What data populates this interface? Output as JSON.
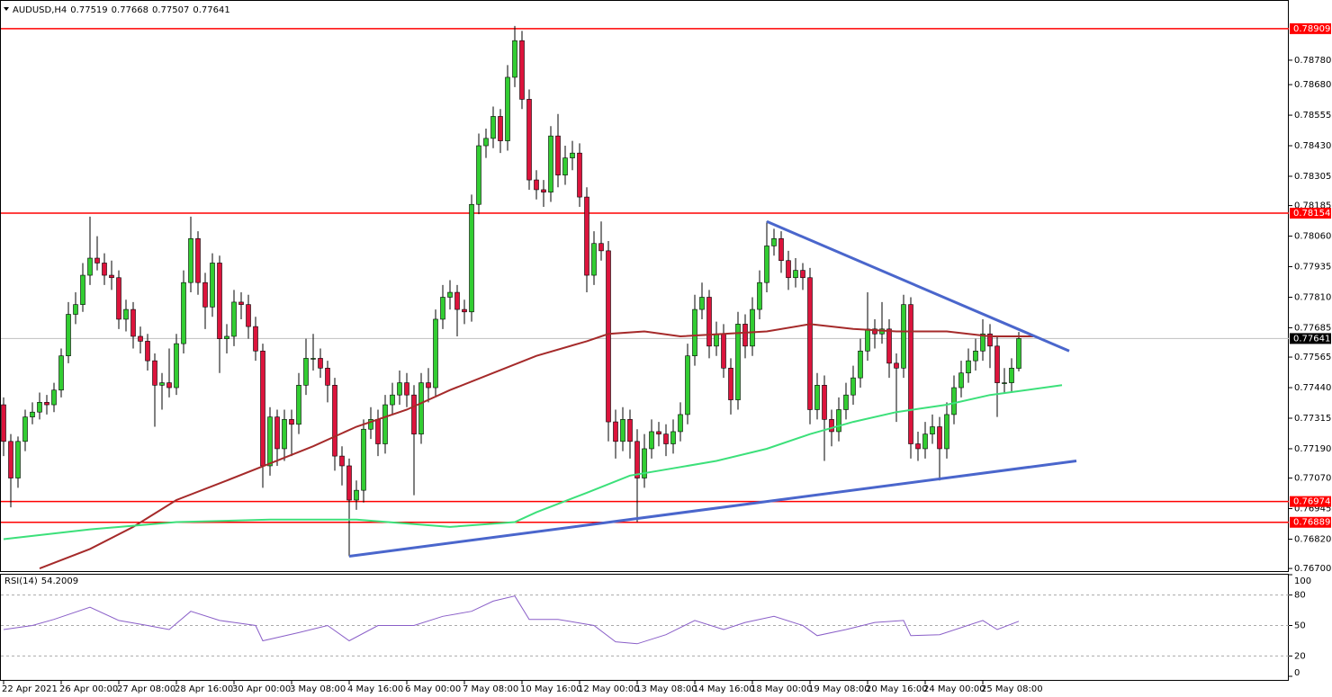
{
  "chart_data": {
    "type": "candlestick",
    "title": "AUDUSD,H4",
    "up_color": "#32cd32",
    "down_color": "#dc143c",
    "level_color": "#ff0000",
    "price_line_color": "#c0c0c0",
    "ylim": [
      0.76693,
      0.78938
    ],
    "yticks": [
      {
        "value": 0.7878,
        "label": "0.78780"
      },
      {
        "value": 0.7868,
        "label": "0.78680"
      },
      0.78555,
      {
        "value": 0.7843,
        "label": "0.78430"
      },
      0.78305,
      0.78185,
      {
        "value": 0.7806,
        "label": "0.78060"
      },
      0.77935,
      {
        "value": 0.7781,
        "label": "0.77810"
      },
      0.77685,
      0.77565,
      {
        "value": 0.7744,
        "label": "0.77440"
      },
      0.77315,
      {
        "value": 0.7719,
        "label": "0.77190"
      },
      {
        "value": 0.7707,
        "label": "0.77070"
      },
      0.76945,
      {
        "value": 0.7682,
        "label": "0.76820"
      },
      {
        "value": 0.767,
        "label": "0.76700"
      }
    ],
    "xticks": [
      {
        "value": 0,
        "label": "22 Apr 2021"
      },
      {
        "value": 8,
        "label": "26 Apr 00:00"
      },
      {
        "value": 16,
        "label": "27 Apr 08:00"
      },
      {
        "value": 24,
        "label": "28 Apr 16:00"
      },
      {
        "value": 32,
        "label": "30 Apr 00:00"
      },
      {
        "value": 40,
        "label": "3 May 08:00"
      },
      {
        "value": 48,
        "label": "4 May 16:00"
      },
      {
        "value": 56,
        "label": "6 May 00:00"
      },
      {
        "value": 64,
        "label": "7 May 08:00"
      },
      {
        "value": 72,
        "label": "10 May 16:00"
      },
      {
        "value": 80,
        "label": "12 May 00:00"
      },
      {
        "value": 88,
        "label": "13 May 08:00"
      },
      {
        "value": 96,
        "label": "14 May 16:00"
      },
      {
        "value": 104,
        "label": "18 May 00:00"
      },
      {
        "value": 112,
        "label": "19 May 08:00"
      },
      {
        "value": 120,
        "label": "20 May 16:00"
      },
      {
        "value": 128,
        "label": "24 May 00:00"
      },
      {
        "value": 136,
        "label": "25 May 08:00"
      }
    ],
    "levels": [
      0.78909,
      0.78154,
      0.76974,
      0.76889
    ],
    "ohlc": [
      [
        0.7737,
        0.774,
        0.7716,
        0.7722
      ],
      [
        0.7722,
        0.7725,
        0.7695,
        0.7707
      ],
      [
        0.7707,
        0.7724,
        0.7703,
        0.7722
      ],
      [
        0.7722,
        0.7735,
        0.7718,
        0.7732
      ],
      [
        0.7732,
        0.7738,
        0.7729,
        0.7734
      ],
      [
        0.7734,
        0.7742,
        0.7731,
        0.7738
      ],
      [
        0.7738,
        0.7741,
        0.7733,
        0.7737
      ],
      [
        0.7737,
        0.7746,
        0.7734,
        0.7743
      ],
      [
        0.7743,
        0.776,
        0.774,
        0.7757
      ],
      [
        0.7757,
        0.7779,
        0.7754,
        0.7774
      ],
      [
        0.7774,
        0.7783,
        0.777,
        0.7778
      ],
      [
        0.7778,
        0.7795,
        0.7775,
        0.779
      ],
      [
        0.779,
        0.7814,
        0.7786,
        0.7797
      ],
      [
        0.7797,
        0.7806,
        0.7792,
        0.7795
      ],
      [
        0.7795,
        0.7799,
        0.7786,
        0.779
      ],
      [
        0.779,
        0.7796,
        0.7784,
        0.7789
      ],
      [
        0.7789,
        0.7792,
        0.7768,
        0.7772
      ],
      [
        0.7772,
        0.778,
        0.7767,
        0.7776
      ],
      [
        0.7776,
        0.7779,
        0.776,
        0.7765
      ],
      [
        0.7765,
        0.7769,
        0.7758,
        0.7763
      ],
      [
        0.7763,
        0.7766,
        0.7751,
        0.7755
      ],
      [
        0.7755,
        0.7758,
        0.7728,
        0.7745
      ],
      [
        0.7745,
        0.775,
        0.7735,
        0.7746
      ],
      [
        0.7746,
        0.776,
        0.774,
        0.7744
      ],
      [
        0.7744,
        0.7766,
        0.7741,
        0.7762
      ],
      [
        0.7762,
        0.7792,
        0.7758,
        0.7787
      ],
      [
        0.7787,
        0.7814,
        0.7783,
        0.7805
      ],
      [
        0.7805,
        0.7808,
        0.7782,
        0.7787
      ],
      [
        0.7787,
        0.7791,
        0.7768,
        0.7777
      ],
      [
        0.7777,
        0.7799,
        0.7773,
        0.7795
      ],
      [
        0.7795,
        0.7798,
        0.775,
        0.7764
      ],
      [
        0.7764,
        0.777,
        0.7758,
        0.7765
      ],
      [
        0.7765,
        0.7784,
        0.7761,
        0.7779
      ],
      [
        0.7779,
        0.7783,
        0.7772,
        0.7778
      ],
      [
        0.7778,
        0.7782,
        0.7764,
        0.7769
      ],
      [
        0.7769,
        0.7773,
        0.7755,
        0.7759
      ],
      [
        0.7759,
        0.7762,
        0.7703,
        0.7712
      ],
      [
        0.7712,
        0.7736,
        0.7708,
        0.7732
      ],
      [
        0.7732,
        0.7735,
        0.7712,
        0.7719
      ],
      [
        0.7719,
        0.7735,
        0.7714,
        0.7731
      ],
      [
        0.7731,
        0.7735,
        0.7716,
        0.7729
      ],
      [
        0.7729,
        0.775,
        0.7725,
        0.7745
      ],
      [
        0.7745,
        0.7764,
        0.7741,
        0.7756
      ],
      [
        0.7756,
        0.7766,
        0.7751,
        0.7756
      ],
      [
        0.7756,
        0.776,
        0.7748,
        0.7752
      ],
      [
        0.7752,
        0.7755,
        0.7738,
        0.7745
      ],
      [
        0.7745,
        0.7748,
        0.771,
        0.7716
      ],
      [
        0.7716,
        0.772,
        0.7704,
        0.7712
      ],
      [
        0.7712,
        0.7715,
        0.7675,
        0.7698
      ],
      [
        0.7698,
        0.7706,
        0.7694,
        0.7702
      ],
      [
        0.7702,
        0.7731,
        0.7697,
        0.7727
      ],
      [
        0.7727,
        0.7736,
        0.7723,
        0.7731
      ],
      [
        0.7731,
        0.7735,
        0.7716,
        0.7721
      ],
      [
        0.7721,
        0.7741,
        0.7717,
        0.7737
      ],
      [
        0.7737,
        0.7746,
        0.7733,
        0.7741
      ],
      [
        0.7741,
        0.7751,
        0.7737,
        0.7746
      ],
      [
        0.7746,
        0.775,
        0.7736,
        0.7741
      ],
      [
        0.7741,
        0.7745,
        0.77,
        0.7725
      ],
      [
        0.7725,
        0.775,
        0.7721,
        0.7746
      ],
      [
        0.7746,
        0.7752,
        0.7738,
        0.7744
      ],
      [
        0.7744,
        0.7776,
        0.774,
        0.7772
      ],
      [
        0.7772,
        0.7786,
        0.7768,
        0.7781
      ],
      [
        0.7781,
        0.7788,
        0.7776,
        0.7783
      ],
      [
        0.7783,
        0.7786,
        0.7765,
        0.7776
      ],
      [
        0.7776,
        0.778,
        0.777,
        0.7775
      ],
      [
        0.7775,
        0.7823,
        0.7771,
        0.7819
      ],
      [
        0.7819,
        0.7848,
        0.7815,
        0.7843
      ],
      [
        0.7843,
        0.785,
        0.7838,
        0.7846
      ],
      [
        0.7846,
        0.7859,
        0.7842,
        0.7855
      ],
      [
        0.7855,
        0.7858,
        0.784,
        0.7845
      ],
      [
        0.7845,
        0.7876,
        0.7841,
        0.7871
      ],
      [
        0.7871,
        0.7892,
        0.7867,
        0.7886
      ],
      [
        0.7886,
        0.789,
        0.7858,
        0.7862
      ],
      [
        0.7862,
        0.7866,
        0.7825,
        0.7829
      ],
      [
        0.7829,
        0.7833,
        0.7821,
        0.7825
      ],
      [
        0.7825,
        0.7829,
        0.7818,
        0.7824
      ],
      [
        0.7824,
        0.7851,
        0.782,
        0.7847
      ],
      [
        0.7847,
        0.7856,
        0.7826,
        0.7831
      ],
      [
        0.7831,
        0.7843,
        0.7827,
        0.7838
      ],
      [
        0.7838,
        0.7845,
        0.7833,
        0.784
      ],
      [
        0.784,
        0.7844,
        0.7818,
        0.7822
      ],
      [
        0.7822,
        0.7826,
        0.7783,
        0.779
      ],
      [
        0.779,
        0.7808,
        0.7786,
        0.7803
      ],
      [
        0.7803,
        0.7812,
        0.7796,
        0.78
      ],
      [
        0.78,
        0.7804,
        0.7722,
        0.773
      ],
      [
        0.773,
        0.7735,
        0.7715,
        0.7722
      ],
      [
        0.7722,
        0.7736,
        0.7718,
        0.7731
      ],
      [
        0.7731,
        0.7735,
        0.7715,
        0.7722
      ],
      [
        0.7722,
        0.7727,
        0.7689,
        0.7707
      ],
      [
        0.7707,
        0.7725,
        0.7703,
        0.7719
      ],
      [
        0.7719,
        0.7731,
        0.7715,
        0.7726
      ],
      [
        0.7726,
        0.773,
        0.772,
        0.7725
      ],
      [
        0.7725,
        0.7729,
        0.7716,
        0.7721
      ],
      [
        0.7721,
        0.7731,
        0.7717,
        0.7726
      ],
      [
        0.7726,
        0.7738,
        0.7722,
        0.7733
      ],
      [
        0.7733,
        0.7762,
        0.7729,
        0.7757
      ],
      [
        0.7757,
        0.7782,
        0.7753,
        0.7776
      ],
      [
        0.7776,
        0.7787,
        0.7772,
        0.7781
      ],
      [
        0.7781,
        0.7784,
        0.7756,
        0.7761
      ],
      [
        0.7761,
        0.7771,
        0.7757,
        0.7766
      ],
      [
        0.7766,
        0.777,
        0.7748,
        0.7752
      ],
      [
        0.7752,
        0.7756,
        0.7733,
        0.7739
      ],
      [
        0.7739,
        0.7775,
        0.7735,
        0.777
      ],
      [
        0.777,
        0.7774,
        0.7756,
        0.7761
      ],
      [
        0.7761,
        0.7781,
        0.7757,
        0.7776
      ],
      [
        0.7776,
        0.7792,
        0.7772,
        0.7787
      ],
      [
        0.7787,
        0.7812,
        0.7783,
        0.7802
      ],
      [
        0.7802,
        0.7809,
        0.7798,
        0.7805
      ],
      [
        0.7805,
        0.7808,
        0.7791,
        0.7796
      ],
      [
        0.7796,
        0.78,
        0.7784,
        0.7789
      ],
      [
        0.7789,
        0.7797,
        0.7785,
        0.7792
      ],
      [
        0.7792,
        0.7795,
        0.7784,
        0.7789
      ],
      [
        0.7789,
        0.7793,
        0.7729,
        0.7735
      ],
      [
        0.7735,
        0.775,
        0.7731,
        0.7745
      ],
      [
        0.7745,
        0.7749,
        0.7714,
        0.7731
      ],
      [
        0.7731,
        0.7735,
        0.772,
        0.7726
      ],
      [
        0.7726,
        0.774,
        0.7722,
        0.7735
      ],
      [
        0.7735,
        0.7746,
        0.7731,
        0.7741
      ],
      [
        0.7741,
        0.7753,
        0.7737,
        0.7748
      ],
      [
        0.7748,
        0.7764,
        0.7744,
        0.7759
      ],
      [
        0.7759,
        0.7783,
        0.7755,
        0.7768
      ],
      [
        0.7768,
        0.7772,
        0.776,
        0.7766
      ],
      [
        0.7766,
        0.7779,
        0.7762,
        0.7768
      ],
      [
        0.7768,
        0.7772,
        0.7748,
        0.7754
      ],
      [
        0.7754,
        0.7758,
        0.773,
        0.7752
      ],
      [
        0.7752,
        0.7782,
        0.7748,
        0.7778
      ],
      [
        0.7778,
        0.7781,
        0.7715,
        0.7721
      ],
      [
        0.7721,
        0.7726,
        0.7714,
        0.7719
      ],
      [
        0.7719,
        0.773,
        0.7715,
        0.7725
      ],
      [
        0.7725,
        0.7733,
        0.7721,
        0.7728
      ],
      [
        0.7728,
        0.7732,
        0.7706,
        0.7719
      ],
      [
        0.7719,
        0.7738,
        0.7715,
        0.7733
      ],
      [
        0.7733,
        0.7749,
        0.7729,
        0.7744
      ],
      [
        0.7744,
        0.7755,
        0.774,
        0.775
      ],
      [
        0.775,
        0.776,
        0.7746,
        0.7755
      ],
      [
        0.7755,
        0.7764,
        0.7751,
        0.7759
      ],
      [
        0.7759,
        0.7772,
        0.7755,
        0.7766
      ],
      [
        0.7766,
        0.777,
        0.7752,
        0.7761
      ],
      [
        0.7761,
        0.7765,
        0.7732,
        0.7746
      ],
      [
        0.7746,
        0.7752,
        0.7742,
        0.7746
      ],
      [
        0.7746,
        0.7756,
        0.7742,
        0.7752
      ],
      [
        0.77519,
        0.77668,
        0.77507,
        0.77641
      ]
    ],
    "series": [
      {
        "color": "#a52a2a",
        "x": [
          5,
          12,
          18,
          24,
          31,
          37,
          43,
          49,
          56,
          62,
          68,
          74,
          81,
          84,
          89,
          94,
          100,
          106,
          112,
          118,
          124,
          131,
          137,
          143
        ],
        "values": [
          0.767,
          0.7678,
          0.7687,
          0.7698,
          0.7706,
          0.7713,
          0.772,
          0.7728,
          0.7735,
          0.7743,
          0.775,
          0.7757,
          0.7763,
          0.7766,
          0.7767,
          0.7765,
          0.7766,
          0.7767,
          0.777,
          0.7768,
          0.7767,
          0.7767,
          0.7765,
          0.7765
        ]
      },
      {
        "color": "#3ce07a",
        "x": [
          0,
          12,
          24,
          37,
          49,
          62,
          71,
          74,
          81,
          87,
          93,
          99,
          106,
          112,
          118,
          124,
          131,
          137,
          147
        ],
        "values": [
          0.7682,
          0.7686,
          0.7689,
          0.769,
          0.769,
          0.7687,
          0.7689,
          0.7693,
          0.7701,
          0.7708,
          0.7711,
          0.7714,
          0.7719,
          0.7725,
          0.773,
          0.7734,
          0.7737,
          0.7741,
          0.7745
        ]
      }
    ],
    "trendlines": [
      {
        "color": "#4a66cc",
        "x": [
          106,
          148
        ],
        "values": [
          0.7812,
          0.7759
        ]
      },
      {
        "color": "#4a66cc",
        "x": [
          48,
          149
        ],
        "values": [
          0.7675,
          0.7714
        ]
      }
    ],
    "rsi": {
      "label": "RSI(14)",
      "color": "#8a5fc8",
      "ylim": [
        0,
        100
      ],
      "yticks": [
        100,
        80,
        50,
        20,
        0
      ],
      "x": [
        0,
        4,
        7,
        12,
        16,
        20,
        23,
        26,
        30,
        35,
        36,
        41,
        45,
        48,
        52,
        57,
        61,
        65,
        68,
        71,
        73,
        77,
        82,
        85,
        88,
        92,
        96,
        100,
        103,
        107,
        111,
        113,
        117,
        121,
        125,
        126,
        130,
        136,
        138,
        141
      ],
      "values": [
        46,
        50,
        56,
        68,
        55,
        50,
        46,
        64,
        55,
        50,
        35,
        43,
        50,
        35,
        50,
        50,
        59,
        64,
        74,
        79,
        56,
        56,
        50,
        34,
        32,
        41,
        55,
        46,
        53,
        59,
        50,
        40,
        46,
        53,
        55,
        40,
        41,
        55,
        46,
        54.2009
      ]
    }
  }
}
